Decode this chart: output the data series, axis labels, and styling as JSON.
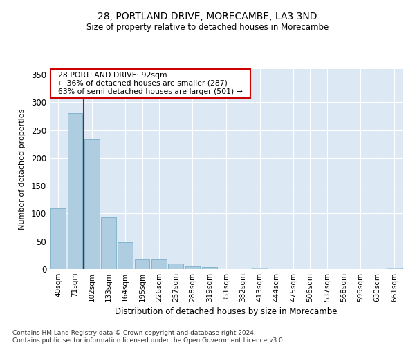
{
  "title": "28, PORTLAND DRIVE, MORECAMBE, LA3 3ND",
  "subtitle": "Size of property relative to detached houses in Morecambe",
  "xlabel": "Distribution of detached houses by size in Morecambe",
  "ylabel": "Number of detached properties",
  "bar_values": [
    109,
    280,
    234,
    93,
    49,
    18,
    18,
    10,
    5,
    4,
    0,
    0,
    3,
    0,
    0,
    0,
    0,
    0,
    0,
    0,
    3
  ],
  "bar_labels": [
    "40sqm",
    "71sqm",
    "102sqm",
    "133sqm",
    "164sqm",
    "195sqm",
    "226sqm",
    "257sqm",
    "288sqm",
    "319sqm",
    "351sqm",
    "382sqm",
    "413sqm",
    "444sqm",
    "475sqm",
    "506sqm",
    "537sqm",
    "568sqm",
    "599sqm",
    "630sqm",
    "661sqm"
  ],
  "bar_color": "#aecde0",
  "bar_edge_color": "#7aafc8",
  "background_color": "#dce9f5",
  "grid_color": "#ffffff",
  "red_line_x": 1.5,
  "annotation_title": "28 PORTLAND DRIVE: 92sqm",
  "annotation_line1": "← 36% of detached houses are smaller (287)",
  "annotation_line2": "63% of semi-detached houses are larger (501) →",
  "annotation_box_color": "#ffffff",
  "annotation_box_edge": "#cc0000",
  "ylim": [
    0,
    360
  ],
  "yticks": [
    0,
    50,
    100,
    150,
    200,
    250,
    300,
    350
  ],
  "footnote": "Contains HM Land Registry data © Crown copyright and database right 2024.\nContains public sector information licensed under the Open Government Licence v3.0."
}
